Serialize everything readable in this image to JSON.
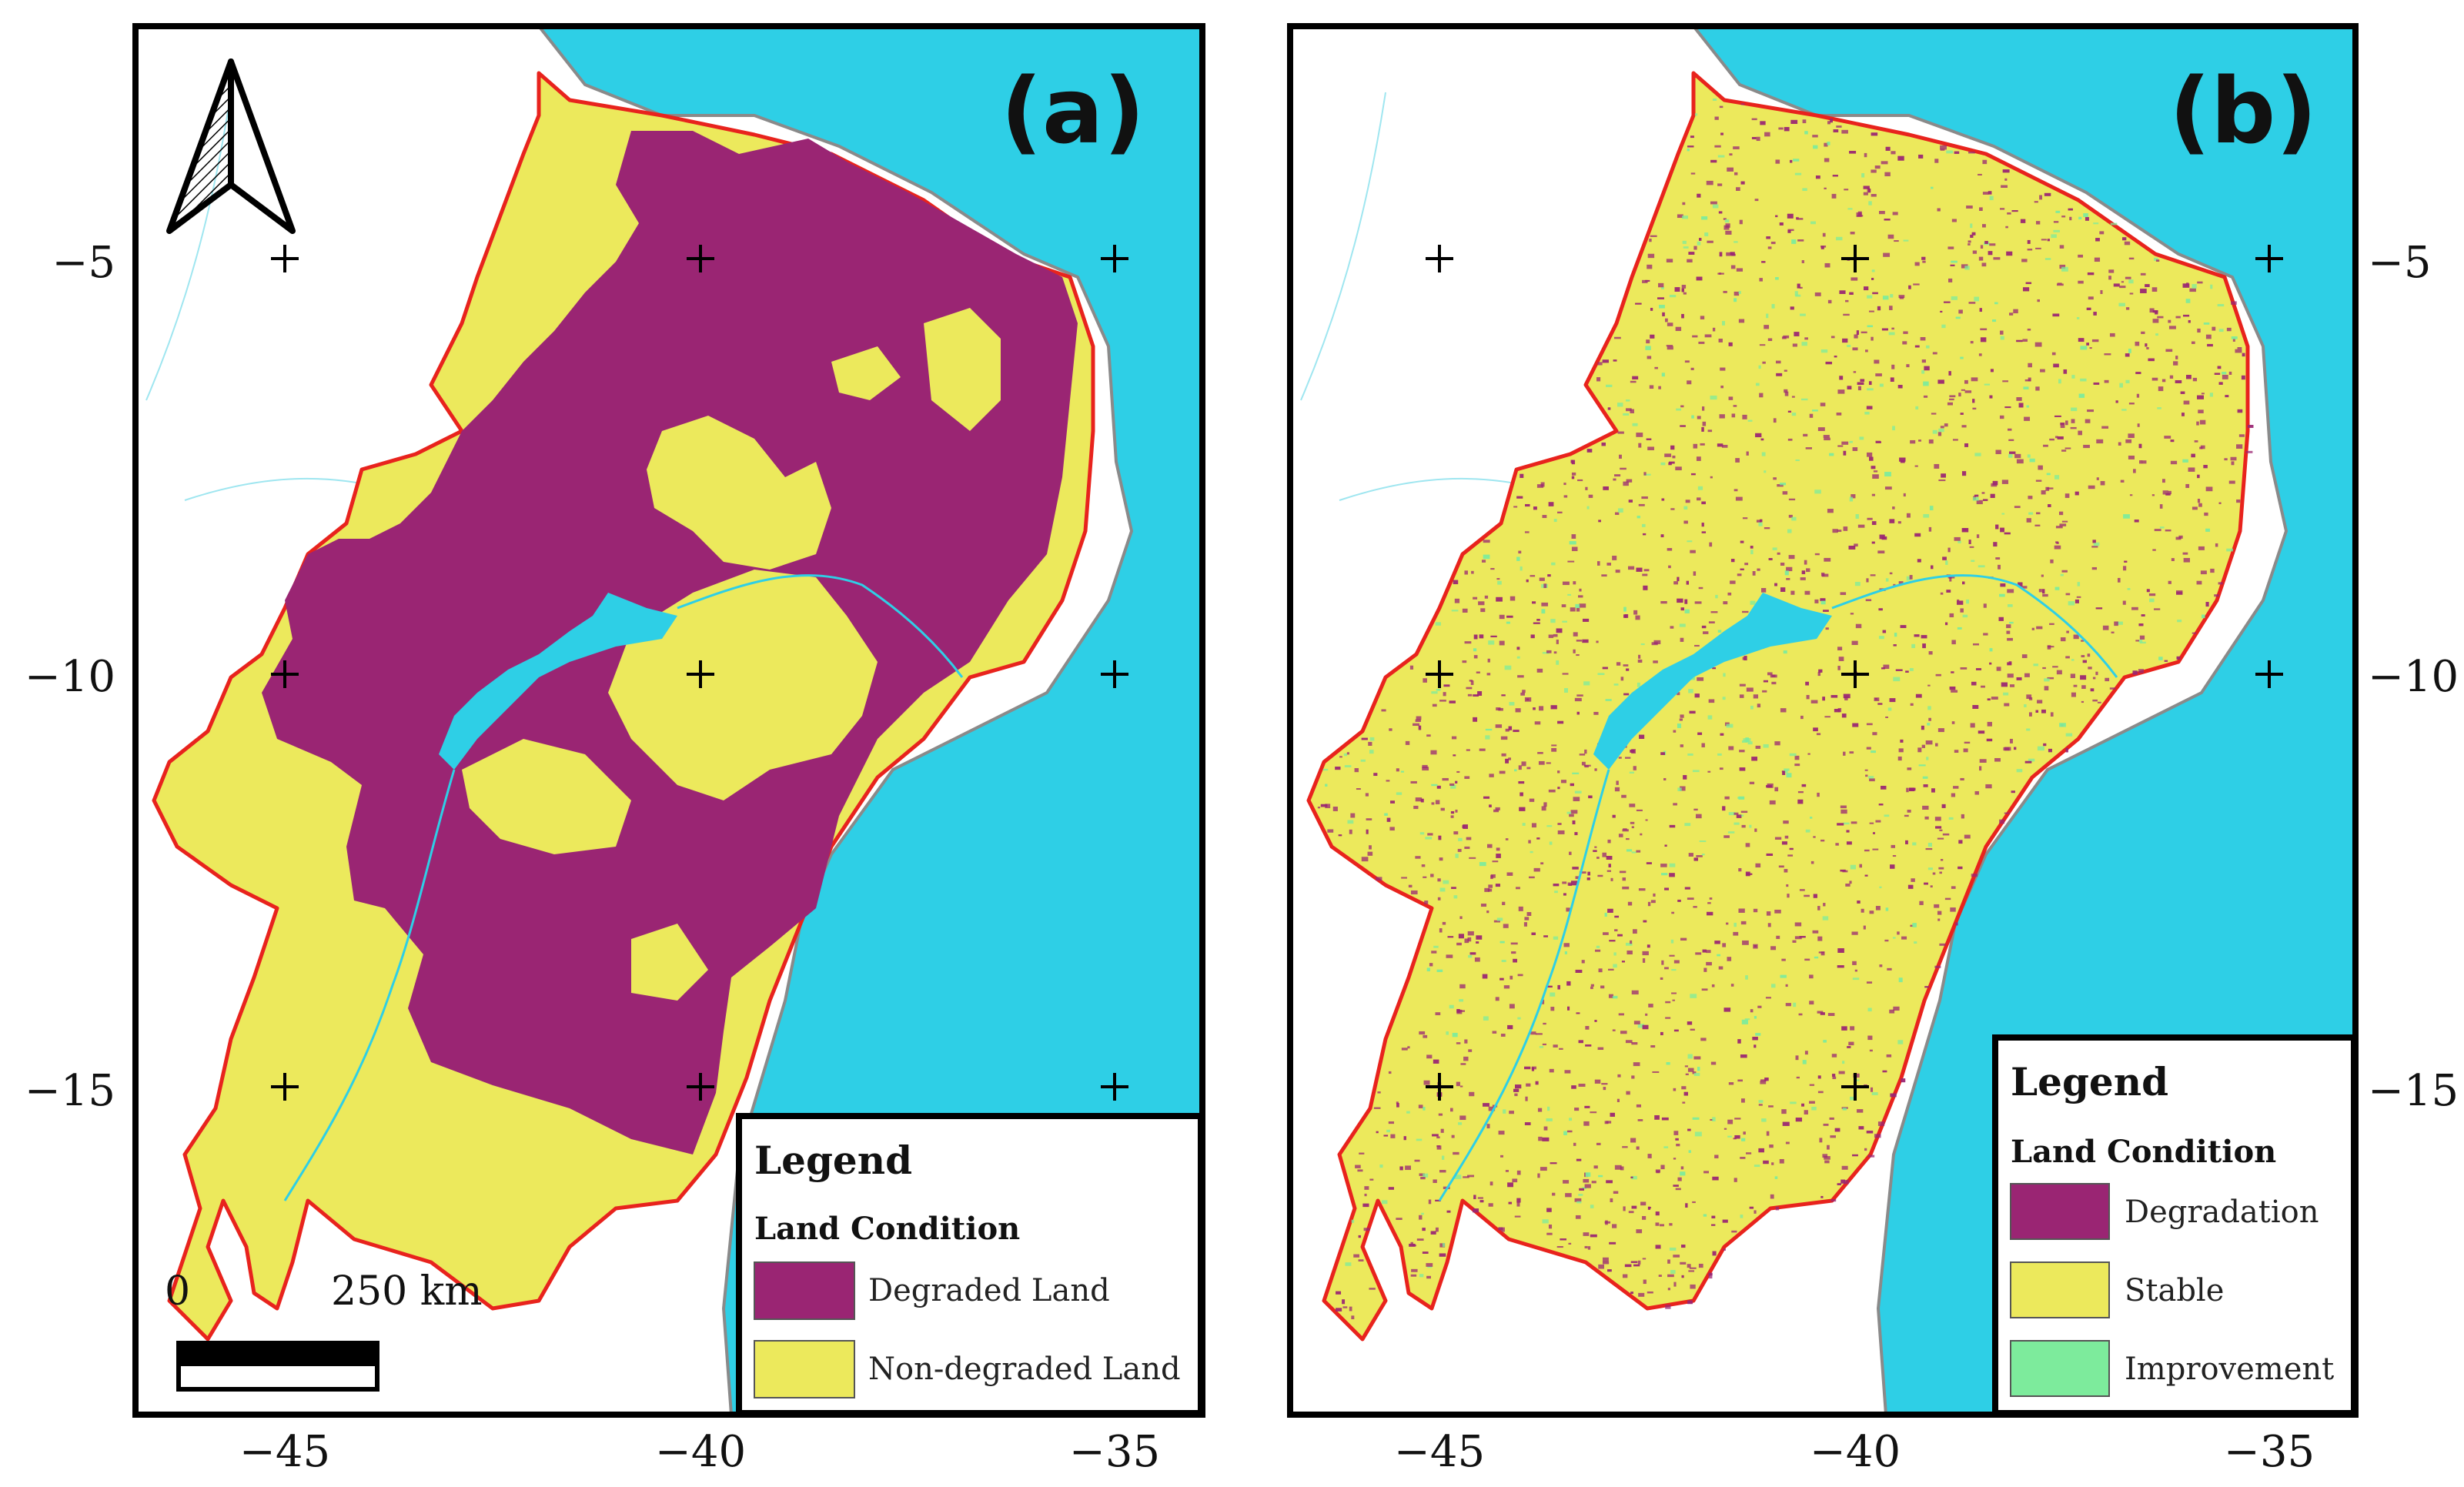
{
  "panels": [
    {
      "label": "(a)",
      "legend": {
        "title": "Legend",
        "subtitle": "Land Condition",
        "items": [
          {
            "label": "Degraded Land",
            "color": "#9a2573"
          },
          {
            "label": "Non-degraded Land",
            "color": "#ece95c"
          }
        ]
      },
      "scalebar": {
        "zero": "0",
        "end": "250 km"
      }
    },
    {
      "label": "(b)",
      "legend": {
        "title": "Legend",
        "subtitle": "Land Condition",
        "items": [
          {
            "label": "Degradation",
            "color": "#9a2573"
          },
          {
            "label": "Stable",
            "color": "#ece95c"
          },
          {
            "label": "Improvement",
            "color": "#7deb9c"
          }
        ]
      }
    }
  ],
  "axes": {
    "x_ticks": [
      "−45",
      "−40",
      "−35"
    ],
    "y_ticks": [
      "−5",
      "−10",
      "−15"
    ]
  },
  "colors": {
    "ocean": "#2ecfe6",
    "border": "#e8231d",
    "degraded": "#9a2573",
    "stable": "#ece95c",
    "improvement": "#7deb9c"
  },
  "icons": {
    "north_arrow": "north-arrow-icon"
  }
}
